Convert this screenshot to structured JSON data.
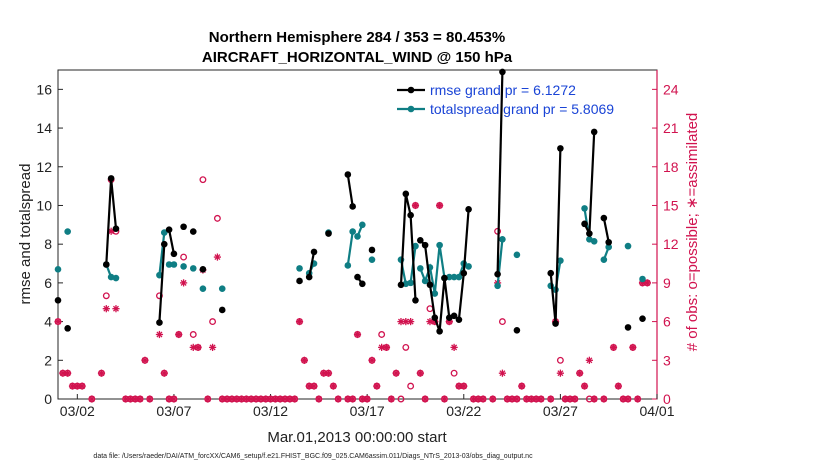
{
  "chart_data": {
    "type": "line",
    "title": "Northern Hemisphere 284 / 353 = 80.453%",
    "subtitle": "AIRCRAFT_HORIZONTAL_WIND @ 150 hPa",
    "xlabel": "Mar.01,2013 00:00:00 start",
    "ylabel": "rmse and totalspread",
    "ylabel_right": "# of obs: o=possible; ∗=assimilated",
    "xlim": [
      0,
      31
    ],
    "ylim": [
      0,
      17
    ],
    "ylim_right": [
      0,
      25.5
    ],
    "xticks": [
      {
        "value": 1,
        "label": "03/02"
      },
      {
        "value": 6,
        "label": "03/07"
      },
      {
        "value": 11,
        "label": "03/12"
      },
      {
        "value": 16,
        "label": "03/17"
      },
      {
        "value": 21,
        "label": "03/22"
      },
      {
        "value": 26,
        "label": "03/27"
      },
      {
        "value": 31,
        "label": "04/01"
      }
    ],
    "yticks": [
      0,
      2,
      4,
      6,
      8,
      10,
      12,
      14,
      16
    ],
    "yticks_right": [
      0,
      3,
      6,
      9,
      12,
      15,
      18,
      21,
      24
    ],
    "legend": {
      "position": "top-right",
      "entries": [
        "rmse grand pr = 6.1272",
        "totalspread grand pr = 5.8069"
      ]
    },
    "footnote": "data file: /Users/raeder/DAI/ATM_forcXX/CAM6_setup/f.e21.FHIST_BGC.f09_025.CAM6assim.011/Diags_NTrS_2013-03/obs_diag_output.nc",
    "colors": {
      "rmse": "#000000",
      "spread": "#0f7e84",
      "obs": "#d1134f",
      "legend_text": "#1a44d6"
    },
    "series": [
      {
        "name": "rmse",
        "segments": [
          [
            [
              0,
              5.1
            ]
          ],
          [
            [
              0.5,
              3.65
            ]
          ],
          [
            [
              2.5,
              6.95
            ],
            [
              2.75,
              11.4
            ],
            [
              3.0,
              8.8
            ]
          ],
          [
            [
              5.25,
              3.95
            ],
            [
              5.5,
              8.0
            ]
          ],
          [
            [
              5.75,
              8.75
            ],
            [
              6.0,
              7.5
            ]
          ],
          [
            [
              6.5,
              8.9
            ]
          ],
          [
            [
              7.0,
              8.65
            ]
          ],
          [
            [
              7.5,
              6.7
            ]
          ],
          [
            [
              8.5,
              4.6
            ]
          ],
          [
            [
              12.5,
              6.1
            ]
          ],
          [
            [
              13.0,
              6.3
            ],
            [
              13.25,
              7.6
            ]
          ],
          [
            [
              14.0,
              8.55
            ]
          ],
          [
            [
              15.0,
              11.6
            ],
            [
              15.25,
              9.95
            ]
          ],
          [
            [
              15.5,
              6.3
            ],
            [
              15.75,
              5.95
            ]
          ],
          [
            [
              16.25,
              7.7
            ]
          ],
          [
            [
              17.75,
              5.9
            ],
            [
              18.0,
              10.6
            ],
            [
              18.25,
              9.5
            ],
            [
              18.5,
              5.1
            ]
          ],
          [
            [
              18.75,
              8.2
            ],
            [
              19.0,
              7.95
            ],
            [
              19.25,
              5.9
            ],
            [
              19.5,
              4.2
            ],
            [
              19.75,
              3.5
            ],
            [
              20.0,
              6.25
            ],
            [
              20.25,
              4.2
            ],
            [
              20.5,
              4.3
            ],
            [
              20.75,
              4.1
            ],
            [
              21.0,
              6.5
            ],
            [
              21.25,
              9.8
            ]
          ],
          [
            [
              22.75,
              6.45
            ],
            [
              23.0,
              16.9
            ]
          ],
          [
            [
              23.75,
              3.55
            ]
          ],
          [
            [
              25.5,
              6.5
            ],
            [
              25.75,
              3.9
            ],
            [
              26.0,
              12.95
            ]
          ],
          [
            [
              27.25,
              9.05
            ],
            [
              27.5,
              8.55
            ],
            [
              27.75,
              13.8
            ]
          ],
          [
            [
              28.25,
              9.35
            ],
            [
              28.5,
              8.1
            ]
          ],
          [
            [
              29.5,
              3.7
            ]
          ],
          [
            [
              30.25,
              4.15
            ]
          ]
        ]
      },
      {
        "name": "totalspread",
        "segments": [
          [
            [
              0,
              6.7
            ]
          ],
          [
            [
              0.5,
              8.65
            ]
          ],
          [
            [
              2.5,
              6.95
            ],
            [
              2.75,
              6.3
            ],
            [
              3.0,
              6.25
            ]
          ],
          [
            [
              5.25,
              6.4
            ],
            [
              5.5,
              8.6
            ]
          ],
          [
            [
              5.75,
              6.95
            ],
            [
              6.0,
              6.95
            ]
          ],
          [
            [
              6.5,
              6.85
            ]
          ],
          [
            [
              7.0,
              6.75
            ]
          ],
          [
            [
              7.5,
              5.7
            ]
          ],
          [
            [
              8.5,
              5.7
            ]
          ],
          [
            [
              12.5,
              6.75
            ]
          ],
          [
            [
              13.0,
              6.5
            ],
            [
              13.25,
              7.0
            ]
          ],
          [
            [
              14.0,
              8.6
            ]
          ],
          [
            [
              15.0,
              6.9
            ],
            [
              15.25,
              8.65
            ]
          ],
          [
            [
              15.5,
              8.4
            ],
            [
              15.75,
              9.0
            ]
          ],
          [
            [
              16.25,
              7.2
            ]
          ],
          [
            [
              17.75,
              7.2
            ],
            [
              18.0,
              5.95
            ],
            [
              18.25,
              6.0
            ],
            [
              18.5,
              7.9
            ]
          ],
          [
            [
              18.75,
              6.75
            ],
            [
              19.0,
              6.1
            ],
            [
              19.25,
              6.8
            ],
            [
              19.5,
              5.45
            ],
            [
              19.75,
              7.95
            ],
            [
              20.0,
              6.25
            ],
            [
              20.25,
              6.3
            ],
            [
              20.5,
              6.3
            ],
            [
              20.75,
              6.3
            ],
            [
              21.0,
              7.0
            ],
            [
              21.25,
              6.85
            ]
          ],
          [
            [
              22.75,
              5.85
            ],
            [
              23.0,
              8.25
            ]
          ],
          [
            [
              23.75,
              7.45
            ]
          ],
          [
            [
              25.5,
              5.85
            ],
            [
              25.75,
              5.65
            ],
            [
              26.0,
              7.15
            ]
          ],
          [
            [
              27.25,
              9.85
            ],
            [
              27.5,
              8.25
            ],
            [
              27.75,
              8.15
            ]
          ],
          [
            [
              28.25,
              7.2
            ],
            [
              28.5,
              7.85
            ]
          ],
          [
            [
              29.5,
              7.9
            ]
          ],
          [
            [
              30.25,
              6.2
            ]
          ]
        ]
      }
    ],
    "obs_possible": [
      [
        0,
        6
      ],
      [
        0.25,
        2
      ],
      [
        0.5,
        2
      ],
      [
        0.75,
        1
      ],
      [
        1,
        1
      ],
      [
        1.25,
        1
      ],
      [
        1.75,
        0
      ],
      [
        2.25,
        2
      ],
      [
        2.5,
        8
      ],
      [
        2.75,
        17
      ],
      [
        3,
        13
      ],
      [
        3.5,
        0
      ],
      [
        3.75,
        0
      ],
      [
        4,
        0
      ],
      [
        4.25,
        0
      ],
      [
        4.5,
        3
      ],
      [
        4.75,
        0
      ],
      [
        5.25,
        8
      ],
      [
        5.5,
        2
      ],
      [
        5.75,
        0
      ],
      [
        6,
        0
      ],
      [
        6.25,
        5
      ],
      [
        6.5,
        11
      ],
      [
        7,
        5
      ],
      [
        7.25,
        4
      ],
      [
        7.5,
        17
      ],
      [
        7.75,
        0
      ],
      [
        8,
        6
      ],
      [
        8.25,
        14
      ],
      [
        8.5,
        0
      ],
      [
        8.75,
        0
      ],
      [
        9,
        0
      ],
      [
        9.25,
        0
      ],
      [
        9.5,
        0
      ],
      [
        9.75,
        0
      ],
      [
        10,
        0
      ],
      [
        10.25,
        0
      ],
      [
        10.5,
        0
      ],
      [
        10.75,
        0
      ],
      [
        11,
        0
      ],
      [
        11.25,
        0
      ],
      [
        11.5,
        0
      ],
      [
        11.75,
        0
      ],
      [
        12,
        0
      ],
      [
        12.25,
        0
      ],
      [
        12.5,
        6
      ],
      [
        12.75,
        3
      ],
      [
        13,
        1
      ],
      [
        13.25,
        1
      ],
      [
        13.5,
        0
      ],
      [
        13.75,
        2
      ],
      [
        14,
        2
      ],
      [
        14.25,
        1
      ],
      [
        14.5,
        0
      ],
      [
        15,
        0
      ],
      [
        15.25,
        0
      ],
      [
        15.5,
        5
      ],
      [
        15.75,
        0
      ],
      [
        16,
        0
      ],
      [
        16.25,
        3
      ],
      [
        16.5,
        1
      ],
      [
        16.75,
        5
      ],
      [
        17,
        4
      ],
      [
        17.25,
        0
      ],
      [
        17.5,
        2
      ],
      [
        17.75,
        0
      ],
      [
        18,
        4
      ],
      [
        18.25,
        1
      ],
      [
        18.5,
        15
      ],
      [
        18.75,
        2
      ],
      [
        19,
        0
      ],
      [
        19.25,
        7
      ],
      [
        19.5,
        6
      ],
      [
        19.75,
        15
      ],
      [
        20,
        0
      ],
      [
        20.25,
        6
      ],
      [
        20.5,
        2
      ],
      [
        20.75,
        1
      ],
      [
        21,
        1
      ],
      [
        21.5,
        0
      ],
      [
        21.75,
        0
      ],
      [
        22,
        0
      ],
      [
        22.5,
        0
      ],
      [
        22.75,
        13
      ],
      [
        23,
        6
      ],
      [
        23.25,
        0
      ],
      [
        23.5,
        0
      ],
      [
        23.75,
        0
      ],
      [
        24,
        1
      ],
      [
        24.25,
        0
      ],
      [
        24.5,
        0
      ],
      [
        24.75,
        0
      ],
      [
        25,
        0
      ],
      [
        25.5,
        0
      ],
      [
        25.75,
        6
      ],
      [
        26,
        3
      ],
      [
        26.25,
        0
      ],
      [
        26.5,
        0
      ],
      [
        26.75,
        0
      ],
      [
        27,
        2
      ],
      [
        27.25,
        1
      ],
      [
        27.5,
        0
      ],
      [
        27.75,
        0
      ],
      [
        28.25,
        0
      ],
      [
        28.75,
        4
      ],
      [
        29,
        1
      ],
      [
        29.25,
        0
      ],
      [
        29.5,
        0
      ],
      [
        29.75,
        4
      ],
      [
        30,
        0
      ],
      [
        30.25,
        9
      ],
      [
        30.5,
        9
      ]
    ],
    "obs_assimilated": [
      [
        0,
        6
      ],
      [
        0.25,
        2
      ],
      [
        0.5,
        2
      ],
      [
        0.75,
        1
      ],
      [
        1,
        1
      ],
      [
        1.25,
        1
      ],
      [
        1.75,
        0
      ],
      [
        2.25,
        2
      ],
      [
        2.5,
        7
      ],
      [
        2.75,
        13
      ],
      [
        3,
        7
      ],
      [
        3.5,
        0
      ],
      [
        3.75,
        0
      ],
      [
        4,
        0
      ],
      [
        4.25,
        0
      ],
      [
        4.5,
        3
      ],
      [
        4.75,
        0
      ],
      [
        5.25,
        5
      ],
      [
        5.5,
        2
      ],
      [
        5.75,
        0
      ],
      [
        6,
        0
      ],
      [
        6.25,
        5
      ],
      [
        6.5,
        9
      ],
      [
        7,
        4
      ],
      [
        7.25,
        4
      ],
      [
        7.5,
        10
      ],
      [
        7.75,
        0
      ],
      [
        8,
        4
      ],
      [
        8.25,
        11
      ],
      [
        8.5,
        0
      ],
      [
        8.75,
        0
      ],
      [
        9,
        0
      ],
      [
        9.25,
        0
      ],
      [
        9.5,
        0
      ],
      [
        9.75,
        0
      ],
      [
        10,
        0
      ],
      [
        10.25,
        0
      ],
      [
        10.5,
        0
      ],
      [
        10.75,
        0
      ],
      [
        11,
        0
      ],
      [
        11.25,
        0
      ],
      [
        11.5,
        0
      ],
      [
        11.75,
        0
      ],
      [
        12,
        0
      ],
      [
        12.25,
        0
      ],
      [
        12.5,
        6
      ],
      [
        12.75,
        3
      ],
      [
        13,
        1
      ],
      [
        13.25,
        1
      ],
      [
        13.5,
        0
      ],
      [
        13.75,
        2
      ],
      [
        14,
        2
      ],
      [
        14.25,
        1
      ],
      [
        14.5,
        0
      ],
      [
        15,
        0
      ],
      [
        15.25,
        0
      ],
      [
        15.5,
        5
      ],
      [
        15.75,
        0
      ],
      [
        16,
        0
      ],
      [
        16.25,
        3
      ],
      [
        16.5,
        1
      ],
      [
        16.75,
        4
      ],
      [
        17,
        4
      ],
      [
        17.25,
        0
      ],
      [
        17.5,
        2
      ],
      [
        17.75,
        6
      ],
      [
        18,
        6
      ],
      [
        18.25,
        6
      ],
      [
        18.5,
        15
      ],
      [
        18.75,
        2
      ],
      [
        19,
        0
      ],
      [
        19.25,
        6
      ],
      [
        19.5,
        6
      ],
      [
        19.75,
        15
      ],
      [
        20,
        0
      ],
      [
        20.25,
        6
      ],
      [
        20.5,
        4
      ],
      [
        20.75,
        1
      ],
      [
        21,
        1
      ],
      [
        21.5,
        0
      ],
      [
        21.75,
        0
      ],
      [
        22,
        0
      ],
      [
        22.5,
        0
      ],
      [
        22.75,
        9
      ],
      [
        23,
        2
      ],
      [
        23.25,
        0
      ],
      [
        23.5,
        0
      ],
      [
        23.75,
        0
      ],
      [
        24,
        1
      ],
      [
        24.25,
        0
      ],
      [
        24.5,
        0
      ],
      [
        24.75,
        0
      ],
      [
        25,
        0
      ],
      [
        25.5,
        0
      ],
      [
        25.75,
        6
      ],
      [
        26,
        2
      ],
      [
        26.25,
        0
      ],
      [
        26.5,
        0
      ],
      [
        26.75,
        0
      ],
      [
        27,
        2
      ],
      [
        27.25,
        1
      ],
      [
        27.5,
        3
      ],
      [
        27.75,
        0
      ],
      [
        28.25,
        0
      ],
      [
        28.75,
        4
      ],
      [
        29,
        1
      ],
      [
        29.25,
        0
      ],
      [
        29.5,
        0
      ],
      [
        29.75,
        4
      ],
      [
        30,
        0
      ],
      [
        30.25,
        9
      ],
      [
        30.5,
        9
      ]
    ]
  }
}
